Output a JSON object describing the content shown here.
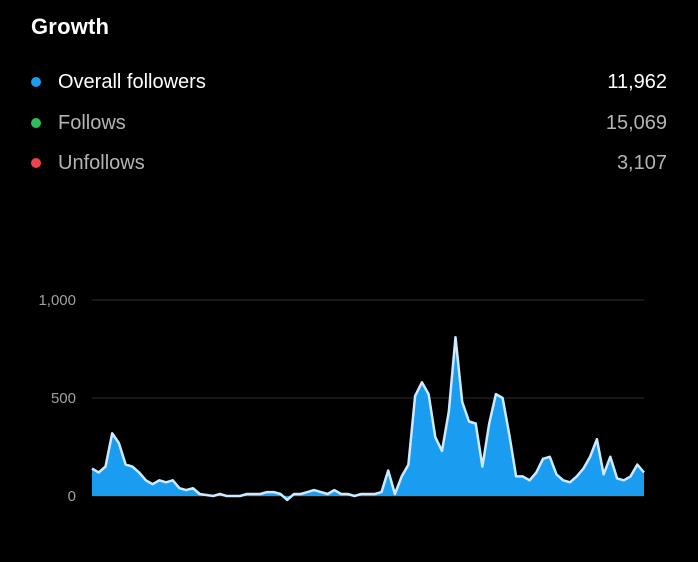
{
  "growth": {
    "title": "Growth",
    "metrics": [
      {
        "label": "Overall followers",
        "value": "11,962",
        "color": "#1a9cf0"
      },
      {
        "label": "Follows",
        "value": "15,069",
        "color": "#2dbf5a"
      },
      {
        "label": "Unfollows",
        "value": "3,107",
        "color": "#f0414e"
      }
    ]
  },
  "chart_data": {
    "type": "area",
    "title": "",
    "xlabel": "",
    "ylabel": "",
    "ylim": [
      0,
      1000
    ],
    "yticks": [
      "0",
      "500",
      "1,000"
    ],
    "ytick_values": [
      0,
      500,
      1000
    ],
    "grid": true,
    "fill_color": "#1a9cf0",
    "line_color": "#cfe9ff",
    "series": [
      {
        "values": [
          140,
          120,
          150,
          320,
          270,
          160,
          150,
          120,
          80,
          60,
          80,
          70,
          80,
          40,
          30,
          40,
          10,
          5,
          0,
          10,
          0,
          0,
          0,
          10,
          10,
          10,
          20,
          20,
          10,
          -20,
          10,
          10,
          20,
          30,
          20,
          10,
          30,
          10,
          10,
          0,
          10,
          10,
          10,
          20,
          130,
          10,
          100,
          160,
          510,
          580,
          520,
          300,
          230,
          430,
          810,
          480,
          380,
          370,
          150,
          370,
          520,
          500,
          310,
          100,
          100,
          80,
          120,
          190,
          200,
          110,
          80,
          70,
          100,
          140,
          200,
          290,
          110,
          200,
          90,
          80,
          100,
          160,
          120
        ]
      }
    ]
  }
}
